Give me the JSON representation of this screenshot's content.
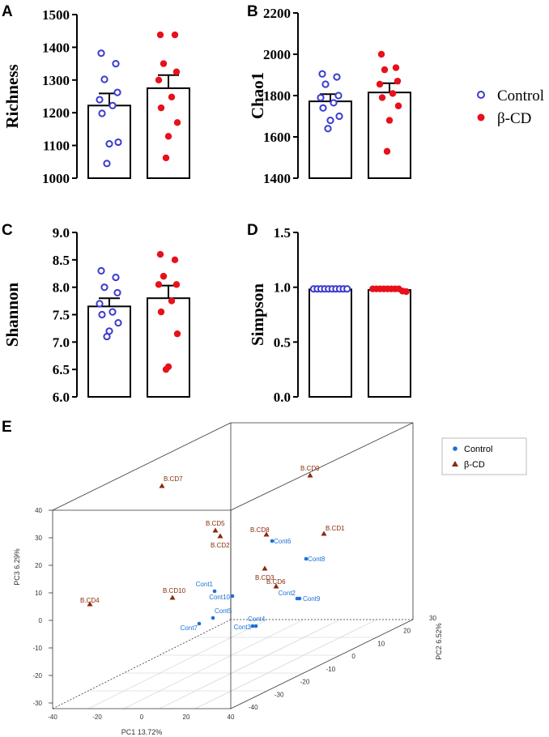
{
  "colors": {
    "control": "#3b3bd0",
    "bcd": "#e8101a",
    "control3d": "#1a6fd6",
    "bcd3d": "#8b2a0a"
  },
  "legend": {
    "control": "Control",
    "bcd": "β-CD"
  },
  "chart_data": [
    {
      "panel": "A",
      "type": "bar",
      "ylabel": "Richness",
      "ylim": [
        1000,
        1500
      ],
      "yticks": [
        "1000",
        "1100",
        "1200",
        "1300",
        "1400",
        "1500"
      ],
      "categories": [
        "Control",
        "β-CD"
      ],
      "means": [
        1222,
        1275
      ],
      "sems": [
        37,
        40
      ],
      "points": [
        [
          1382,
          1350,
          1302,
          1262,
          1240,
          1222,
          1198,
          1110,
          1105,
          1045
        ],
        [
          1438,
          1438,
          1350,
          1325,
          1300,
          1248,
          1215,
          1170,
          1128,
          1062
        ]
      ]
    },
    {
      "panel": "B",
      "type": "bar",
      "ylabel": "Chao1",
      "ylim": [
        1400,
        2200
      ],
      "yticks": [
        "1400",
        "1600",
        "1800",
        "2000",
        "2200"
      ],
      "categories": [
        "Control",
        "β-CD"
      ],
      "means": [
        1772,
        1815
      ],
      "sems": [
        35,
        45
      ],
      "points": [
        [
          1905,
          1890,
          1855,
          1800,
          1790,
          1765,
          1740,
          1700,
          1680,
          1640
        ],
        [
          2000,
          1935,
          1925,
          1870,
          1855,
          1810,
          1790,
          1750,
          1680,
          1530
        ]
      ]
    },
    {
      "panel": "C",
      "type": "bar",
      "ylabel": "Shannon",
      "ylim": [
        6.0,
        9.0
      ],
      "yticks": [
        "6.0",
        "6.5",
        "7.0",
        "7.5",
        "8.0",
        "8.5",
        "9.0"
      ],
      "categories": [
        "Control",
        "β-CD"
      ],
      "means": [
        7.65,
        7.8
      ],
      "sems": [
        0.15,
        0.23
      ],
      "points": [
        [
          8.3,
          8.18,
          8.0,
          7.9,
          7.7,
          7.55,
          7.5,
          7.35,
          7.2,
          7.1
        ],
        [
          8.6,
          8.5,
          8.2,
          8.05,
          8.05,
          7.75,
          7.55,
          7.15,
          6.55,
          6.5
        ]
      ]
    },
    {
      "panel": "D",
      "type": "bar",
      "ylabel": "Simpson",
      "ylim": [
        0.0,
        1.5
      ],
      "yticks": [
        "0.0",
        "0.5",
        "1.0",
        "1.5"
      ],
      "categories": [
        "Control",
        "β-CD"
      ],
      "means": [
        0.98,
        0.975
      ],
      "sems": [
        0.003,
        0.004
      ],
      "points": [
        [
          0.985,
          0.985,
          0.985,
          0.985,
          0.985,
          0.985,
          0.985,
          0.985,
          0.985,
          0.985
        ],
        [
          0.985,
          0.985,
          0.985,
          0.985,
          0.985,
          0.985,
          0.985,
          0.985,
          0.965,
          0.96
        ]
      ]
    },
    {
      "panel": "E",
      "type": "scatter",
      "xlabel": "PC1 13.72%",
      "ylabel": "PC2 6.52%",
      "zlabel": "PC3 6.29%",
      "xticks": [
        "-40",
        "-20",
        "0",
        "20",
        "40"
      ],
      "yticks": [
        "-40",
        "-30",
        "-20",
        "-10",
        "0",
        "10",
        "20",
        "30"
      ],
      "zticks": [
        "40",
        "30",
        "20",
        "10",
        "0",
        "-10",
        "-20",
        "-30"
      ],
      "series": [
        {
          "name": "Control",
          "labels": [
            "Cont1",
            "Cont10",
            "Cont2",
            "Cont3",
            "Cont4",
            "Cont5",
            "Cont6",
            "Cont7",
            "Cont8",
            "Cont9"
          ]
        },
        {
          "name": "β-CD",
          "labels": [
            "B.CD1",
            "B.CD10",
            "B.CD2",
            "B.CD3",
            "B.CD4",
            "B.CD5",
            "B.CD6",
            "B.CD7",
            "B.CD8",
            "B.CD9"
          ]
        }
      ]
    }
  ]
}
